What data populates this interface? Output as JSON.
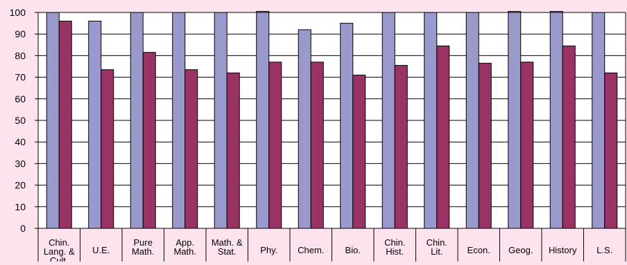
{
  "chart_data": {
    "type": "bar",
    "title": "",
    "xlabel": "",
    "ylabel": "",
    "ylim": [
      0,
      100
    ],
    "yticks": [
      0,
      10,
      20,
      30,
      40,
      50,
      60,
      70,
      80,
      90,
      100
    ],
    "grid": true,
    "legend": "none",
    "categories": [
      [
        "Chin.",
        "Lang. &",
        "Cult."
      ],
      [
        "U.E."
      ],
      [
        "Pure",
        "Math."
      ],
      [
        "App.",
        "Math."
      ],
      [
        "Math. &",
        "Stat."
      ],
      [
        "Phy."
      ],
      [
        "Chem."
      ],
      [
        "Bio."
      ],
      [
        "Chin.",
        "Hist."
      ],
      [
        "Chin.",
        "Lit."
      ],
      [
        "Econ."
      ],
      [
        "Geog."
      ],
      [
        "History"
      ],
      [
        "L.S."
      ]
    ],
    "series": [
      {
        "color": "#9999cc",
        "values": [
          100,
          96,
          100,
          100,
          100,
          100.5,
          92,
          95,
          100,
          100,
          100,
          100.5,
          100.5,
          100
        ]
      },
      {
        "color": "#993366",
        "values": [
          96,
          73.5,
          81.5,
          73.5,
          72,
          77,
          77,
          71,
          75.5,
          84.5,
          76.5,
          77,
          84.5,
          72
        ]
      }
    ]
  }
}
